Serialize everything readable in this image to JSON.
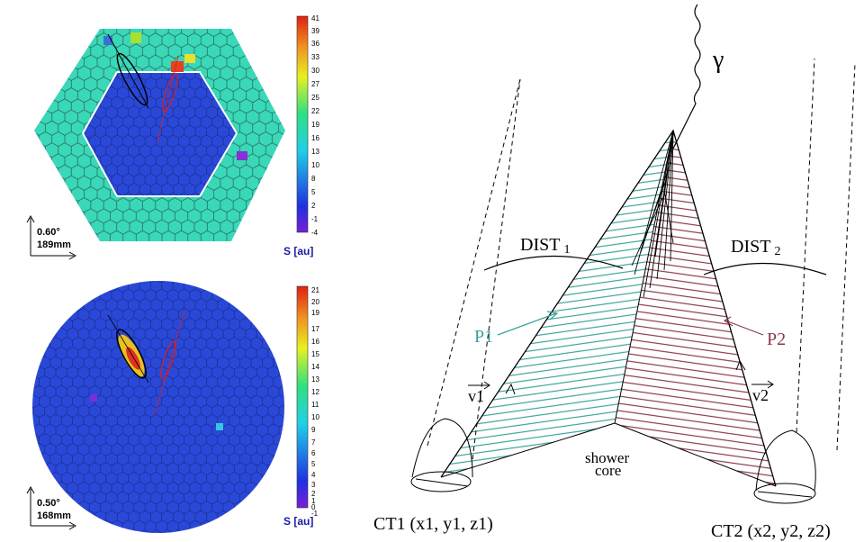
{
  "top_panel": {
    "colorbar_ticks": [
      "41",
      "39",
      "36",
      "33",
      "30",
      "27",
      "25",
      "22",
      "19",
      "16",
      "13",
      "10",
      "8",
      "5",
      "2",
      "-1",
      "-4"
    ],
    "unit_label": "S [au]",
    "scale_angle": "0.60°",
    "scale_length": "189mm"
  },
  "bottom_panel": {
    "colorbar_ticks": [
      "21",
      "20",
      "19",
      "17",
      "16",
      "15",
      "14",
      "13",
      "12",
      "11",
      "10",
      "9",
      "7",
      "6",
      "5",
      "4",
      "3",
      "2",
      "1",
      "0",
      "-1"
    ],
    "unit_label": "S [au]",
    "scale_angle": "0.50°",
    "scale_length": "168mm"
  },
  "diagram": {
    "gamma": "γ",
    "dist1": "DIST",
    "dist1_sub": "1",
    "dist2": "DIST",
    "dist2_sub": "2",
    "p1": "P1",
    "p2": "P2",
    "v1": "v1",
    "v2": "v2",
    "shower_core_line1": "shower",
    "shower_core_line2": "core",
    "ct1": "CT1 (x1, y1, z1)",
    "ct2": "CT2 (x2, y2, z2)"
  },
  "colors": {
    "p1_hatch": "#3aa39a",
    "p2_hatch": "#8a3a4a",
    "label_blue": "#1a1aa0",
    "camera_blue": "#2a3fd0",
    "camera_green": "#3fd6a0"
  }
}
